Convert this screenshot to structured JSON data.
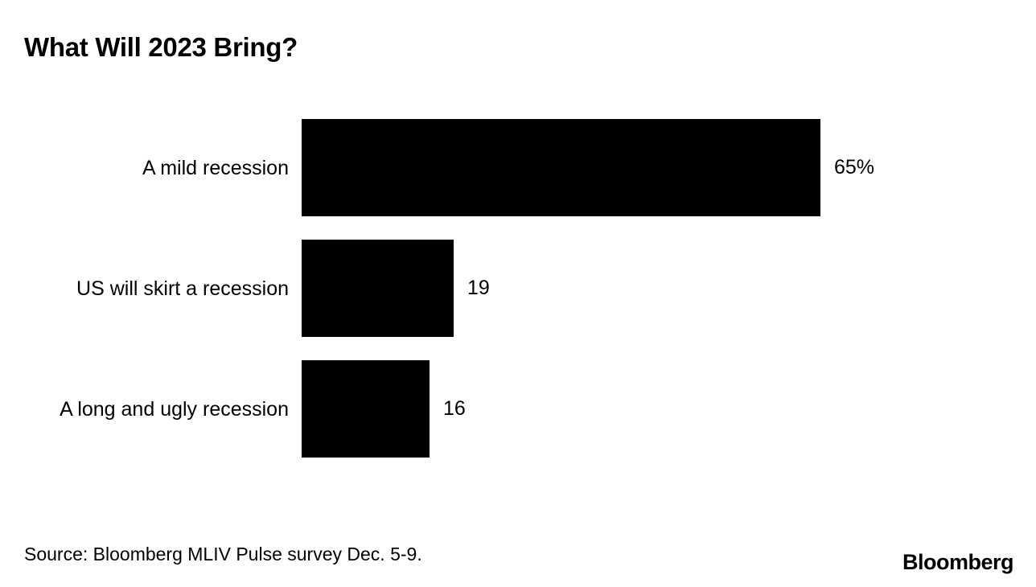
{
  "title": "What Will 2023 Bring?",
  "chart_data": {
    "type": "bar",
    "orientation": "horizontal",
    "title": "What Will 2023 Bring?",
    "categories": [
      "A mild recession",
      "US will skirt a recession",
      "A long and ugly recession"
    ],
    "values": [
      65,
      19,
      16
    ],
    "value_labels": [
      "65%",
      "19",
      "16"
    ],
    "xlim": [
      0,
      65
    ],
    "bar_color": "#000000",
    "background_color": "#ffffff",
    "grid": false,
    "legend": "none",
    "xlabel": "",
    "ylabel": ""
  },
  "footer": {
    "source": "Source: Bloomberg MLIV Pulse survey Dec. 5-9.",
    "brand": "Bloomberg"
  }
}
